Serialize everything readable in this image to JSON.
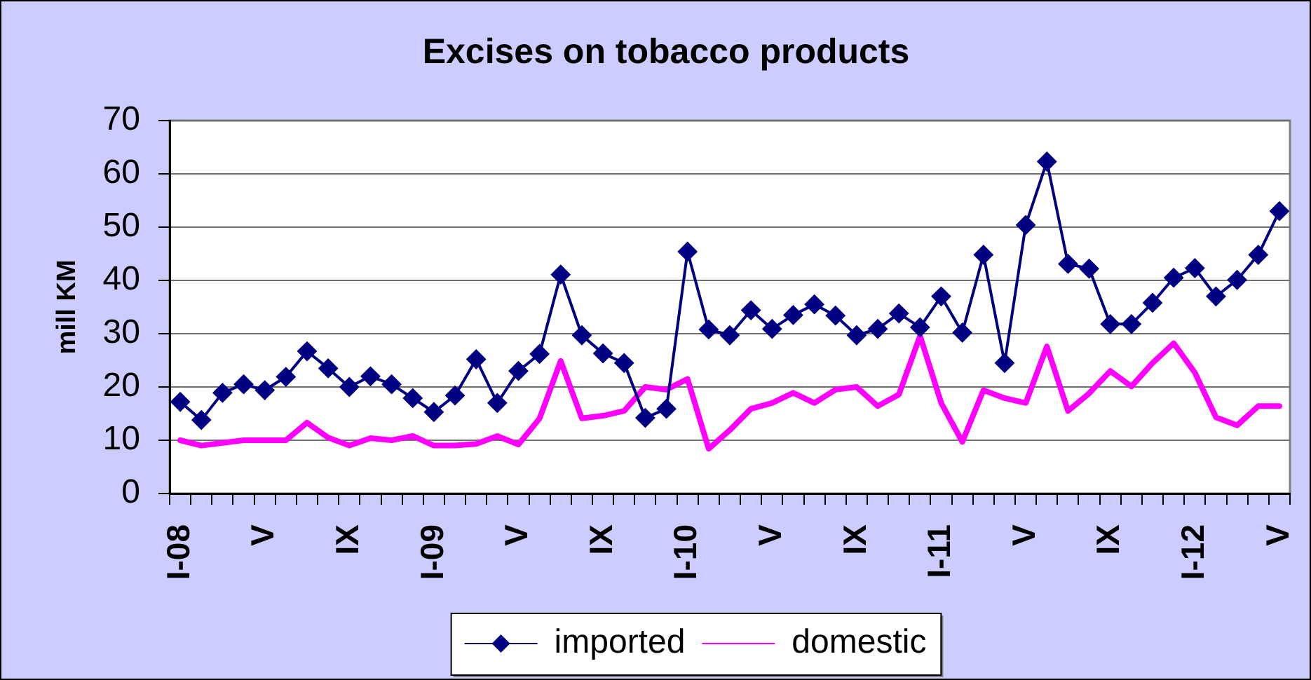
{
  "chart_data": {
    "type": "line",
    "title": "Excises on tobacco products",
    "ylabel": "mill KM",
    "categories": [
      "I-08",
      null,
      null,
      null,
      "V",
      null,
      null,
      null,
      "IX",
      null,
      null,
      null,
      "I-09",
      null,
      null,
      null,
      "V",
      null,
      null,
      null,
      "IX",
      null,
      null,
      null,
      "I-10",
      null,
      null,
      null,
      "V",
      null,
      null,
      null,
      "IX",
      null,
      null,
      null,
      "I-11",
      null,
      null,
      null,
      "V",
      null,
      null,
      null,
      "IX",
      null,
      null,
      null,
      "I-12",
      null,
      null,
      null,
      "V"
    ],
    "series": [
      {
        "name": "imported",
        "color": "#000080",
        "marker": "diamond",
        "values": [
          17.2,
          13.8,
          18.9,
          20.5,
          19.4,
          21.9,
          26.7,
          23.5,
          20,
          22,
          20.5,
          17.9,
          15.3,
          18.4,
          25.2,
          17,
          23,
          26.2,
          41.1,
          29.7,
          26.3,
          24.5,
          14.2,
          15.9,
          45.4,
          30.8,
          29.7,
          34.4,
          30.9,
          33.5,
          35.5,
          33.4,
          29.7,
          30.9,
          33.8,
          31.2,
          37,
          30.2,
          44.8,
          24.5,
          50.4,
          62.3,
          43.1,
          42.2,
          31.8,
          31.8,
          35.8,
          40.5,
          42.3,
          37,
          40.1,
          44.8,
          53
        ]
      },
      {
        "name": "domestic",
        "color": "#ff00ff",
        "marker": "none",
        "values": [
          10,
          9,
          9.5,
          10,
          10,
          10,
          13.3,
          10.5,
          9,
          10.4,
          10,
          10.8,
          9,
          9,
          9.3,
          10.8,
          9.2,
          14.1,
          24.9,
          14.1,
          14.6,
          15.5,
          20,
          19.5,
          21.5,
          8.4,
          11.9,
          15.9,
          17,
          18.9,
          17,
          19.5,
          20,
          16.4,
          18.6,
          29.6,
          17,
          9.7,
          19.4,
          17.9,
          17,
          27.6,
          15.5,
          18.8,
          23,
          20.1,
          24.5,
          28.2,
          22.7,
          14.3,
          12.8,
          16.4,
          16.4
        ]
      }
    ],
    "ylim": [
      0,
      70
    ],
    "yticks": [
      0,
      10,
      20,
      30,
      40,
      50,
      60,
      70
    ],
    "grid": "y",
    "legend": "bottom"
  }
}
